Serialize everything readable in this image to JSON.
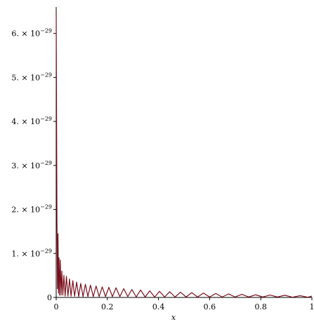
{
  "chart_data": {
    "type": "line",
    "xlabel": "x",
    "ylabel": "",
    "xlim": [
      0,
      1
    ],
    "ylim": [
      0,
      6.6e-29
    ],
    "grid": false,
    "legend": "none",
    "line_color": "#7a0f1c",
    "x_ticks": [
      {
        "value": 0,
        "label": "0"
      },
      {
        "value": 0.2,
        "label": "0.2"
      },
      {
        "value": 0.4,
        "label": "0.4"
      },
      {
        "value": 0.6,
        "label": "0.6"
      },
      {
        "value": 0.8,
        "label": "0.8"
      },
      {
        "value": 1,
        "label": "1"
      }
    ],
    "y_ticks": [
      {
        "value": 0,
        "label": "0",
        "exp": ""
      },
      {
        "value": 1e-29,
        "label": "1. × 10",
        "exp": "−29"
      },
      {
        "value": 2e-29,
        "label": "2. × 10",
        "exp": "−29"
      },
      {
        "value": 3e-29,
        "label": "3. × 10",
        "exp": "−29"
      },
      {
        "value": 4e-29,
        "label": "4. × 10",
        "exp": "−29"
      },
      {
        "value": 5e-29,
        "label": "5. × 10",
        "exp": "−29"
      },
      {
        "value": 6e-29,
        "label": "6. × 10",
        "exp": "−29"
      }
    ],
    "series": [
      {
        "x": [
          0.0,
          0.003,
          0.005,
          0.007,
          0.009,
          0.011,
          0.013,
          0.016,
          0.019,
          0.022,
          0.026,
          0.03,
          0.035,
          0.04,
          0.046,
          0.052,
          0.058,
          0.065,
          0.072,
          0.08,
          0.088,
          0.096,
          0.105,
          0.114,
          0.124,
          0.134,
          0.145,
          0.156,
          0.168,
          0.18,
          0.193,
          0.206,
          0.22,
          0.234,
          0.249,
          0.264,
          0.28,
          0.296,
          0.313,
          0.33,
          0.348,
          0.366,
          0.385,
          0.404,
          0.424,
          0.444,
          0.465,
          0.486,
          0.508,
          0.53,
          0.553,
          0.576,
          0.6,
          0.624,
          0.649,
          0.674,
          0.7,
          0.726,
          0.753,
          0.78,
          0.808,
          0.836,
          0.865,
          0.894,
          0.924,
          0.954,
          0.984,
          1.0
        ],
        "y": [
          6.5e-29,
          1.7e-29,
          2e-30,
          1.45e-29,
          1e-30,
          9e-30,
          5e-31,
          8.5e-30,
          5e-31,
          6e-30,
          5e-31,
          5e-30,
          3e-31,
          4.8e-30,
          3e-31,
          4.2e-30,
          3e-31,
          3.8e-30,
          3e-31,
          3.5e-30,
          2e-31,
          3.2e-30,
          2e-31,
          3e-30,
          2e-31,
          2.8e-30,
          2e-31,
          2.6e-30,
          2e-31,
          2.4e-30,
          2e-31,
          2.3e-30,
          2e-31,
          2.2e-30,
          2e-31,
          2e-30,
          2e-31,
          1.8e-30,
          1e-31,
          1.7e-30,
          1e-31,
          1.5e-30,
          1e-31,
          1.4e-30,
          1e-31,
          1.3e-30,
          1e-31,
          1.2e-30,
          1e-31,
          1.1e-30,
          1e-31,
          1e-30,
          1e-31,
          9e-31,
          1e-31,
          8e-31,
          1e-31,
          7e-31,
          1e-31,
          6e-31,
          1e-31,
          5.5e-31,
          1e-31,
          5e-31,
          5e-32,
          4e-31,
          5e-32,
          3e-31
        ]
      }
    ]
  }
}
